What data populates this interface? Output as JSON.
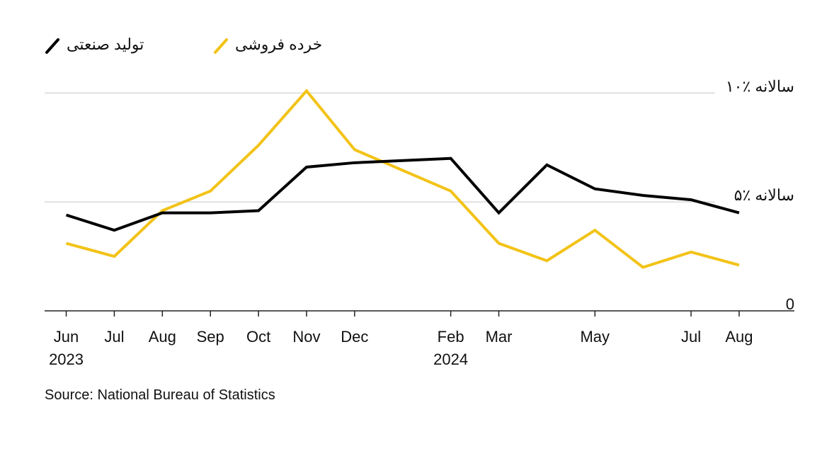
{
  "chart_data": {
    "type": "line",
    "x": [
      0,
      1,
      2,
      3,
      4,
      5,
      6,
      8,
      9,
      10,
      11,
      12,
      13,
      14
    ],
    "xlim": [
      -0.45,
      15.15
    ],
    "xticks": [
      {
        "value": 0,
        "label": "Jun 2023"
      },
      {
        "value": 1,
        "label": "Jul"
      },
      {
        "value": 2,
        "label": "Aug"
      },
      {
        "value": 3,
        "label": "Sep"
      },
      {
        "value": 4,
        "label": "Oct"
      },
      {
        "value": 5,
        "label": "Nov"
      },
      {
        "value": 6,
        "label": "Dec"
      },
      {
        "value": 8,
        "label": "Feb 2024"
      },
      {
        "value": 9,
        "label": "Mar"
      },
      {
        "value": 11,
        "label": "May"
      },
      {
        "value": 13,
        "label": "Jul"
      },
      {
        "value": 14,
        "label": "Aug"
      }
    ],
    "ylim": [
      0,
      10.5
    ],
    "yticks": [
      0,
      {
        "value": 5,
        "label": "۵٪ سالانه"
      },
      {
        "value": 10,
        "label": "۱۰٪ سالانه"
      }
    ],
    "grid": true,
    "series": [
      {
        "name": "تولید صنعتی",
        "color": "#000000",
        "values": [
          4.4,
          3.7,
          4.5,
          4.5,
          4.6,
          6.6,
          6.8,
          7.0,
          4.5,
          6.7,
          5.6,
          5.3,
          5.1,
          4.5
        ]
      },
      {
        "name": "خرده فروشی",
        "color": "#f2c318",
        "values": [
          3.1,
          2.5,
          4.6,
          5.5,
          7.6,
          10.1,
          7.4,
          5.5,
          3.1,
          2.3,
          3.7,
          2.0,
          2.7,
          2.1
        ]
      }
    ],
    "source": "Source: National Bureau of Statistics"
  }
}
